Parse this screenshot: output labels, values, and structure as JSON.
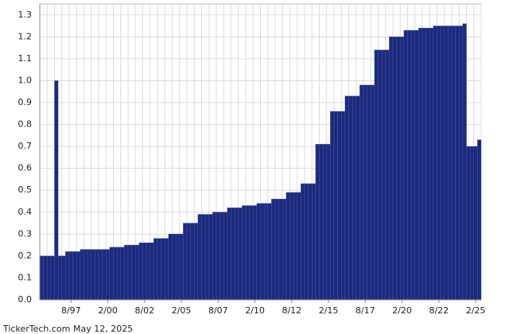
{
  "chart_data": {
    "type": "bar",
    "color": "#1b2a7c",
    "grid": true,
    "source": "TickerTech.com",
    "date": "May 12, 2025",
    "ylim": [
      0,
      1.35
    ],
    "yticks": [
      {
        "value": 0,
        "label": "0.0"
      },
      0.1,
      0.2,
      0.3,
      0.4,
      0.5,
      0.6,
      0.7,
      0.8,
      0.9,
      {
        "value": 1,
        "label": "1.0"
      },
      1.1,
      1.2,
      1.3
    ],
    "categories": [
      null,
      null,
      null,
      null,
      null,
      null,
      null,
      null,
      "8/97",
      null,
      null,
      null,
      null,
      null,
      null,
      null,
      null,
      null,
      "2/00",
      null,
      null,
      null,
      null,
      null,
      null,
      null,
      null,
      null,
      "8/02",
      null,
      null,
      null,
      null,
      null,
      null,
      null,
      null,
      null,
      "2/05",
      null,
      null,
      null,
      null,
      null,
      null,
      null,
      null,
      null,
      "8/07",
      null,
      null,
      null,
      null,
      null,
      null,
      null,
      null,
      null,
      "2/10",
      null,
      null,
      null,
      null,
      null,
      null,
      null,
      null,
      null,
      "8/12",
      null,
      null,
      null,
      null,
      null,
      null,
      null,
      null,
      null,
      "2/15",
      null,
      null,
      null,
      null,
      null,
      null,
      null,
      null,
      null,
      "8/17",
      null,
      null,
      null,
      null,
      null,
      null,
      null,
      null,
      null,
      "2/20",
      null,
      null,
      null,
      null,
      null,
      null,
      null,
      null,
      null,
      "8/22",
      null,
      null,
      null,
      null,
      null,
      null,
      null,
      null,
      null,
      "2/25",
      null
    ],
    "values": [
      0.2,
      0.2,
      0.2,
      0.2,
      1.0,
      0.2,
      0.2,
      0.22,
      0.22,
      0.22,
      0.22,
      0.23,
      0.23,
      0.23,
      0.23,
      0.23,
      0.23,
      0.23,
      0.23,
      0.24,
      0.24,
      0.24,
      0.24,
      0.25,
      0.25,
      0.25,
      0.25,
      0.26,
      0.26,
      0.26,
      0.26,
      0.28,
      0.28,
      0.28,
      0.28,
      0.3,
      0.3,
      0.3,
      0.3,
      0.35,
      0.35,
      0.35,
      0.35,
      0.39,
      0.39,
      0.39,
      0.39,
      0.4,
      0.4,
      0.4,
      0.4,
      0.42,
      0.42,
      0.42,
      0.42,
      0.43,
      0.43,
      0.43,
      0.43,
      0.44,
      0.44,
      0.44,
      0.44,
      0.46,
      0.46,
      0.46,
      0.46,
      0.49,
      0.49,
      0.49,
      0.49,
      0.53,
      0.53,
      0.53,
      0.53,
      0.71,
      0.71,
      0.71,
      0.71,
      0.86,
      0.86,
      0.86,
      0.86,
      0.93,
      0.93,
      0.93,
      0.93,
      0.98,
      0.98,
      0.98,
      0.98,
      1.14,
      1.14,
      1.14,
      1.14,
      1.2,
      1.2,
      1.2,
      1.2,
      1.23,
      1.23,
      1.23,
      1.23,
      1.24,
      1.24,
      1.24,
      1.24,
      1.25,
      1.25,
      1.25,
      1.25,
      1.25,
      1.25,
      1.25,
      1.25,
      1.26,
      0.7,
      0.7,
      0.7,
      0.73
    ]
  }
}
